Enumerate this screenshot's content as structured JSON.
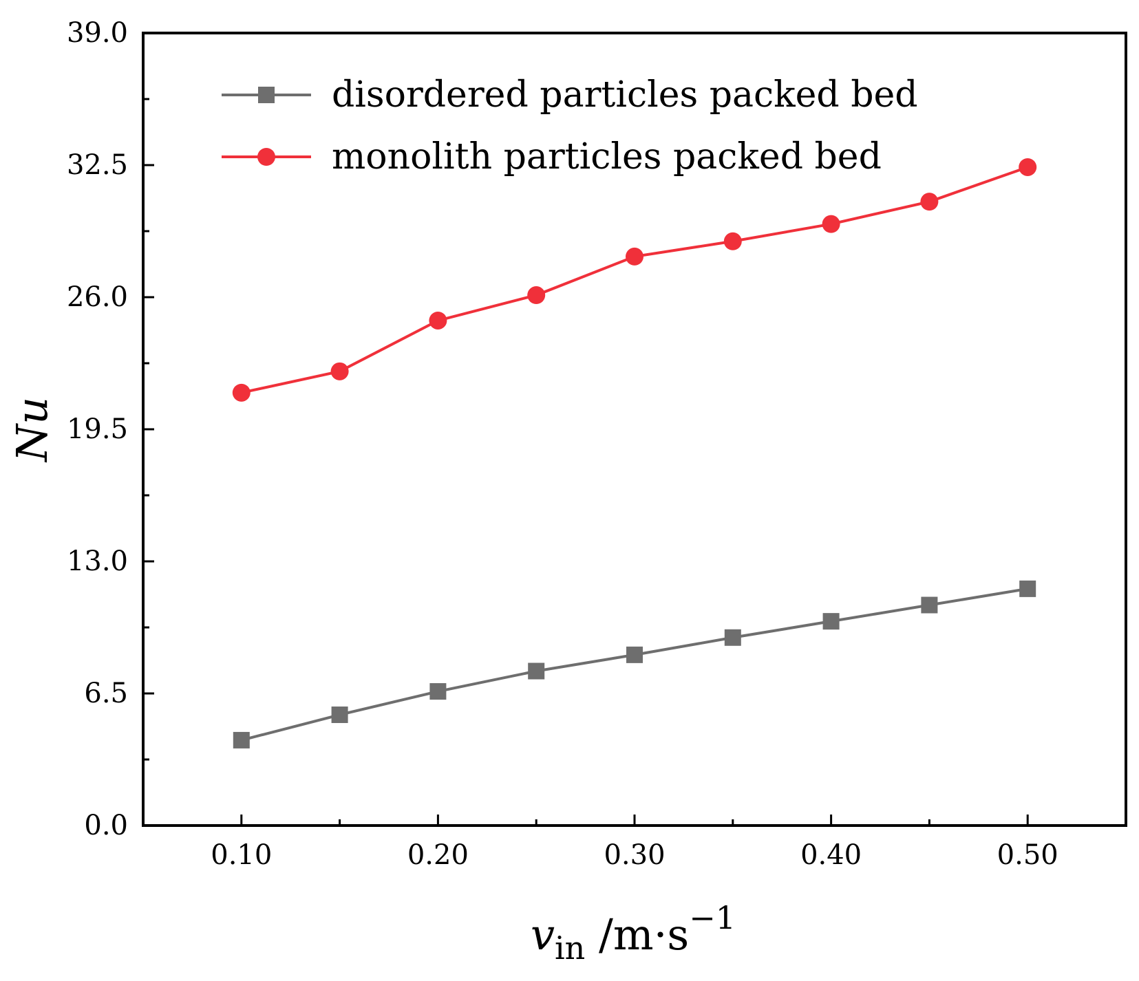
{
  "chart_data": {
    "type": "line",
    "title": "",
    "x": [
      0.1,
      0.15,
      0.2,
      0.25,
      0.3,
      0.35,
      0.4,
      0.45,
      0.5
    ],
    "xlim": [
      0.05,
      0.55
    ],
    "ylim": [
      0.0,
      39.0
    ],
    "x_ticks": [
      "0.10",
      "0.20",
      "0.30",
      "0.40",
      "0.50"
    ],
    "y_ticks": [
      "0.0",
      "6.5",
      "13.0",
      "19.5",
      "26.0",
      "32.5",
      "39.0"
    ],
    "xlabel": {
      "var": "v",
      "sub": "in",
      "unit": " /m·s",
      "sup": "−1"
    },
    "ylabel": {
      "n": "N",
      "u": "u"
    },
    "legend_position": "top-left",
    "series": [
      {
        "name": "disordered particles packed bed",
        "color": "#6e6e6e",
        "marker": "square",
        "values": [
          4.2,
          5.45,
          6.6,
          7.6,
          8.4,
          9.25,
          10.05,
          10.85,
          11.65
        ]
      },
      {
        "name": "monolith particles packed bed",
        "color": "#f0303a",
        "marker": "circle",
        "values": [
          21.3,
          22.35,
          24.85,
          26.1,
          28.0,
          28.75,
          29.6,
          30.7,
          32.4
        ]
      }
    ]
  }
}
